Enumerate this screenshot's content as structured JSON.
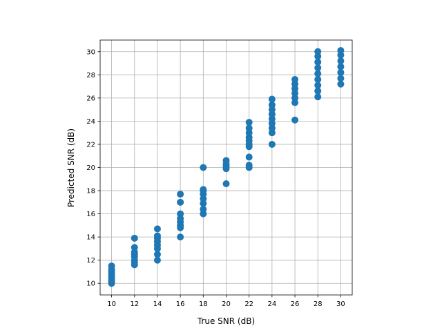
{
  "chart_data": {
    "type": "scatter",
    "title": "",
    "xlabel": "True SNR (dB)",
    "ylabel": "Predicted SNR (dB)",
    "xlim": [
      9.0,
      31.0
    ],
    "ylim": [
      9.0,
      31.0
    ],
    "xticks": [
      10,
      12,
      14,
      16,
      18,
      20,
      22,
      24,
      26,
      28,
      30
    ],
    "yticks": [
      10,
      12,
      14,
      16,
      18,
      20,
      22,
      24,
      26,
      28,
      30
    ],
    "grid": true,
    "marker_color": "#1f77b4",
    "series": [
      {
        "points": [
          {
            "x": 10,
            "y": 10.0
          },
          {
            "x": 10,
            "y": 10.2
          },
          {
            "x": 10,
            "y": 10.4
          },
          {
            "x": 10,
            "y": 10.6
          },
          {
            "x": 10,
            "y": 10.8
          },
          {
            "x": 10,
            "y": 11.0
          },
          {
            "x": 10,
            "y": 11.2
          },
          {
            "x": 10,
            "y": 11.5
          },
          {
            "x": 12,
            "y": 11.6
          },
          {
            "x": 12,
            "y": 11.8
          },
          {
            "x": 12,
            "y": 12.0
          },
          {
            "x": 12,
            "y": 12.3
          },
          {
            "x": 12,
            "y": 12.5
          },
          {
            "x": 12,
            "y": 12.7
          },
          {
            "x": 12,
            "y": 13.1
          },
          {
            "x": 12,
            "y": 13.9
          },
          {
            "x": 14,
            "y": 12.0
          },
          {
            "x": 14,
            "y": 12.5
          },
          {
            "x": 14,
            "y": 13.0
          },
          {
            "x": 14,
            "y": 13.3
          },
          {
            "x": 14,
            "y": 13.6
          },
          {
            "x": 14,
            "y": 13.9
          },
          {
            "x": 14,
            "y": 14.1
          },
          {
            "x": 14,
            "y": 14.7
          },
          {
            "x": 16,
            "y": 14.0
          },
          {
            "x": 16,
            "y": 14.8
          },
          {
            "x": 16,
            "y": 15.0
          },
          {
            "x": 16,
            "y": 15.3
          },
          {
            "x": 16,
            "y": 15.6
          },
          {
            "x": 16,
            "y": 16.0
          },
          {
            "x": 16,
            "y": 17.0
          },
          {
            "x": 16,
            "y": 17.7
          },
          {
            "x": 18,
            "y": 16.0
          },
          {
            "x": 18,
            "y": 16.4
          },
          {
            "x": 18,
            "y": 16.9
          },
          {
            "x": 18,
            "y": 17.3
          },
          {
            "x": 18,
            "y": 17.7
          },
          {
            "x": 18,
            "y": 18.0
          },
          {
            "x": 18,
            "y": 18.1
          },
          {
            "x": 18,
            "y": 20.0
          },
          {
            "x": 20,
            "y": 18.6
          },
          {
            "x": 20,
            "y": 19.9
          },
          {
            "x": 20,
            "y": 20.1
          },
          {
            "x": 20,
            "y": 20.3
          },
          {
            "x": 20,
            "y": 20.6
          },
          {
            "x": 22,
            "y": 20.0
          },
          {
            "x": 22,
            "y": 20.2
          },
          {
            "x": 22,
            "y": 20.9
          },
          {
            "x": 22,
            "y": 21.8
          },
          {
            "x": 22,
            "y": 22.0
          },
          {
            "x": 22,
            "y": 22.3
          },
          {
            "x": 22,
            "y": 22.6
          },
          {
            "x": 22,
            "y": 23.0
          },
          {
            "x": 22,
            "y": 23.4
          },
          {
            "x": 22,
            "y": 23.9
          },
          {
            "x": 24,
            "y": 22.0
          },
          {
            "x": 24,
            "y": 23.0
          },
          {
            "x": 24,
            "y": 23.4
          },
          {
            "x": 24,
            "y": 23.8
          },
          {
            "x": 24,
            "y": 24.2
          },
          {
            "x": 24,
            "y": 24.6
          },
          {
            "x": 24,
            "y": 25.0
          },
          {
            "x": 24,
            "y": 25.4
          },
          {
            "x": 24,
            "y": 25.9
          },
          {
            "x": 26,
            "y": 24.1
          },
          {
            "x": 26,
            "y": 25.6
          },
          {
            "x": 26,
            "y": 26.0
          },
          {
            "x": 26,
            "y": 26.4
          },
          {
            "x": 26,
            "y": 26.8
          },
          {
            "x": 26,
            "y": 27.2
          },
          {
            "x": 26,
            "y": 27.6
          },
          {
            "x": 28,
            "y": 26.1
          },
          {
            "x": 28,
            "y": 26.6
          },
          {
            "x": 28,
            "y": 27.1
          },
          {
            "x": 28,
            "y": 27.6
          },
          {
            "x": 28,
            "y": 28.1
          },
          {
            "x": 28,
            "y": 28.6
          },
          {
            "x": 28,
            "y": 29.1
          },
          {
            "x": 28,
            "y": 29.6
          },
          {
            "x": 28,
            "y": 30.0
          },
          {
            "x": 30,
            "y": 27.2
          },
          {
            "x": 30,
            "y": 27.7
          },
          {
            "x": 30,
            "y": 28.2
          },
          {
            "x": 30,
            "y": 28.7
          },
          {
            "x": 30,
            "y": 29.2
          },
          {
            "x": 30,
            "y": 29.7
          },
          {
            "x": 30,
            "y": 30.1
          }
        ]
      }
    ]
  }
}
